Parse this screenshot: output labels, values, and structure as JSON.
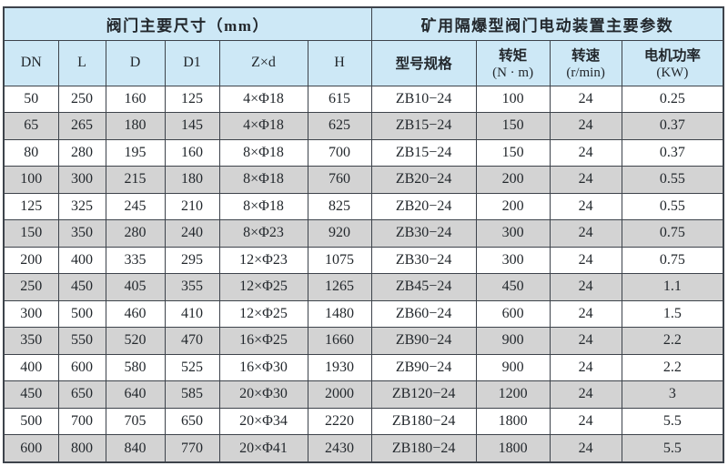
{
  "colors": {
    "header_bg": "#cde8f6",
    "row_alt_bg": "#d3d3d3",
    "row_bg": "#ffffff",
    "border": "#3d434b",
    "text": "#23282d"
  },
  "table": {
    "header_groups": [
      {
        "label": "阀门主要尺寸（mm）",
        "colspan": 6
      },
      {
        "label": "矿用隔爆型阀门电动装置主要参数",
        "colspan": 4
      }
    ],
    "columns": [
      {
        "label": "DN"
      },
      {
        "label": "L"
      },
      {
        "label": "D"
      },
      {
        "label": "D1"
      },
      {
        "label": "Z×d"
      },
      {
        "label": "H"
      },
      {
        "label": "型号规格"
      },
      {
        "label": "转矩",
        "sub": "(N · m)"
      },
      {
        "label": "转速",
        "sub": "(r/min)"
      },
      {
        "label": "电机功率",
        "sub": "(KW)"
      }
    ],
    "rows": [
      [
        "50",
        "250",
        "160",
        "125",
        "4×Φ18",
        "615",
        "ZB10−24",
        "100",
        "24",
        "0.25"
      ],
      [
        "65",
        "265",
        "180",
        "145",
        "4×Φ18",
        "625",
        "ZB15−24",
        "150",
        "24",
        "0.37"
      ],
      [
        "80",
        "280",
        "195",
        "160",
        "8×Φ18",
        "700",
        "ZB15−24",
        "150",
        "24",
        "0.37"
      ],
      [
        "100",
        "300",
        "215",
        "180",
        "8×Φ18",
        "760",
        "ZB20−24",
        "200",
        "24",
        "0.55"
      ],
      [
        "125",
        "325",
        "245",
        "210",
        "8×Φ18",
        "825",
        "ZB20−24",
        "200",
        "24",
        "0.55"
      ],
      [
        "150",
        "350",
        "280",
        "240",
        "8×Φ23",
        "920",
        "ZB30−24",
        "300",
        "24",
        "0.75"
      ],
      [
        "200",
        "400",
        "335",
        "295",
        "12×Φ23",
        "1075",
        "ZB30−24",
        "300",
        "24",
        "0.75"
      ],
      [
        "250",
        "450",
        "405",
        "355",
        "12×Φ25",
        "1265",
        "ZB45−24",
        "450",
        "24",
        "1.1"
      ],
      [
        "300",
        "500",
        "460",
        "410",
        "12×Φ25",
        "1480",
        "ZB60−24",
        "600",
        "24",
        "1.5"
      ],
      [
        "350",
        "550",
        "520",
        "470",
        "16×Φ25",
        "1660",
        "ZB90−24",
        "900",
        "24",
        "2.2"
      ],
      [
        "400",
        "600",
        "580",
        "525",
        "16×Φ30",
        "1930",
        "ZB90−24",
        "900",
        "24",
        "2.2"
      ],
      [
        "450",
        "650",
        "640",
        "585",
        "20×Φ30",
        "2000",
        "ZB120−24",
        "1200",
        "24",
        "3"
      ],
      [
        "500",
        "700",
        "705",
        "650",
        "20×Φ34",
        "2220",
        "ZB180−24",
        "1800",
        "24",
        "5.5"
      ],
      [
        "600",
        "800",
        "840",
        "770",
        "20×Φ41",
        "2430",
        "ZB180−24",
        "1800",
        "24",
        "5.5"
      ]
    ]
  },
  "chart_data": {
    "type": "table",
    "title": "阀门主要尺寸（mm）/ 矿用隔爆型阀门电动装置主要参数",
    "columns": [
      "DN",
      "L",
      "D",
      "D1",
      "Z×d",
      "H",
      "型号规格",
      "转矩 (N·m)",
      "转速 (r/min)",
      "电机功率 (KW)"
    ],
    "rows": [
      [
        "50",
        "250",
        "160",
        "125",
        "4×Φ18",
        "615",
        "ZB10−24",
        "100",
        "24",
        "0.25"
      ],
      [
        "65",
        "265",
        "180",
        "145",
        "4×Φ18",
        "625",
        "ZB15−24",
        "150",
        "24",
        "0.37"
      ],
      [
        "80",
        "280",
        "195",
        "160",
        "8×Φ18",
        "700",
        "ZB15−24",
        "150",
        "24",
        "0.37"
      ],
      [
        "100",
        "300",
        "215",
        "180",
        "8×Φ18",
        "760",
        "ZB20−24",
        "200",
        "24",
        "0.55"
      ],
      [
        "125",
        "325",
        "245",
        "210",
        "8×Φ18",
        "825",
        "ZB20−24",
        "200",
        "24",
        "0.55"
      ],
      [
        "150",
        "350",
        "280",
        "240",
        "8×Φ23",
        "920",
        "ZB30−24",
        "300",
        "24",
        "0.75"
      ],
      [
        "200",
        "400",
        "335",
        "295",
        "12×Φ23",
        "1075",
        "ZB30−24",
        "300",
        "24",
        "0.75"
      ],
      [
        "250",
        "450",
        "405",
        "355",
        "12×Φ25",
        "1265",
        "ZB45−24",
        "450",
        "24",
        "1.1"
      ],
      [
        "300",
        "500",
        "460",
        "410",
        "12×Φ25",
        "1480",
        "ZB60−24",
        "600",
        "24",
        "1.5"
      ],
      [
        "350",
        "550",
        "520",
        "470",
        "16×Φ25",
        "1660",
        "ZB90−24",
        "900",
        "24",
        "2.2"
      ],
      [
        "400",
        "600",
        "580",
        "525",
        "16×Φ30",
        "1930",
        "ZB90−24",
        "900",
        "24",
        "2.2"
      ],
      [
        "450",
        "650",
        "640",
        "585",
        "20×Φ30",
        "2000",
        "ZB120−24",
        "1200",
        "24",
        "3"
      ],
      [
        "500",
        "700",
        "705",
        "650",
        "20×Φ34",
        "2220",
        "ZB180−24",
        "1800",
        "24",
        "5.5"
      ],
      [
        "600",
        "800",
        "840",
        "770",
        "20×Φ41",
        "2430",
        "ZB180−24",
        "1800",
        "24",
        "5.5"
      ]
    ]
  }
}
